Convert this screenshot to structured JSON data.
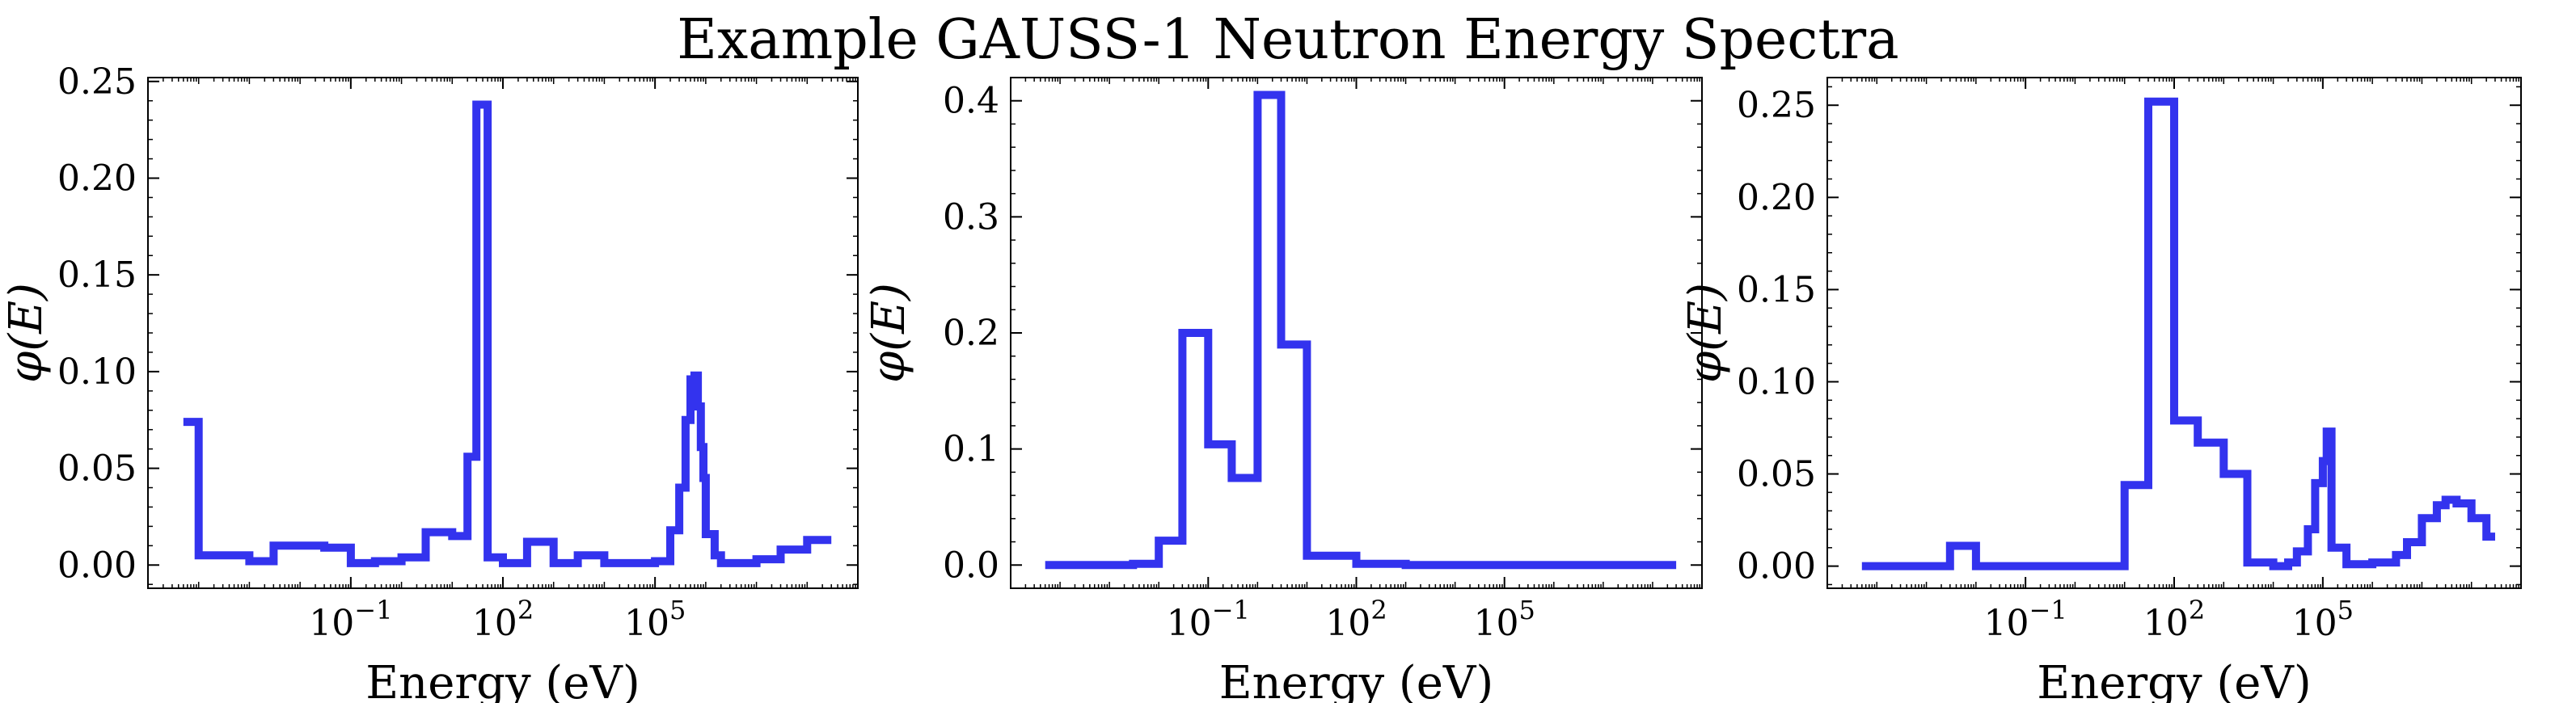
{
  "title": "Example GAUSS-1 Neutron Energy Spectra",
  "series_color": "#3333ee",
  "chart_data": [
    {
      "type": "line",
      "step": "post",
      "xscale": "log",
      "xlabel": "Energy (eV)",
      "ylabel": "φ(E)",
      "xlim": [
        1e-05,
        1000000000.0
      ],
      "ylim": [
        -0.012,
        0.252
      ],
      "xticks": [
        {
          "value": 0.1,
          "base": "10",
          "exp": "−1"
        },
        {
          "value": 100,
          "base": "10",
          "exp": "2"
        },
        {
          "value": 100000,
          "base": "10",
          "exp": "5"
        }
      ],
      "yticks": [
        {
          "value": 0,
          "label": "0.00"
        },
        {
          "value": 0.05,
          "label": "0.05"
        },
        {
          "value": 0.1,
          "label": "0.10"
        },
        {
          "value": 0.15,
          "label": "0.15"
        },
        {
          "value": 0.2,
          "label": "0.20"
        },
        {
          "value": 0.25,
          "label": "0.25"
        }
      ],
      "x": [
        5e-05,
        0.0001,
        0.001,
        0.003,
        0.03,
        0.1,
        0.3,
        1,
        3,
        10,
        20,
        30,
        50,
        100,
        300,
        1000,
        3000,
        10000,
        100000,
        200000,
        300000,
        400000,
        500000,
        600000,
        700000,
        800000,
        900000,
        1000000,
        1500000,
        2000000,
        5000000,
        10000000,
        30000000,
        100000000,
        300000000
      ],
      "y": [
        0.074,
        0.005,
        0.002,
        0.01,
        0.009,
        0.001,
        0.002,
        0.004,
        0.017,
        0.015,
        0.056,
        0.238,
        0.004,
        0.001,
        0.012,
        0.001,
        0.005,
        0.001,
        0.002,
        0.018,
        0.04,
        0.075,
        0.096,
        0.098,
        0.082,
        0.061,
        0.045,
        0.016,
        0.005,
        0.001,
        0.001,
        0.003,
        0.008,
        0.013,
        0.013
      ]
    },
    {
      "type": "line",
      "step": "post",
      "xscale": "log",
      "xlabel": "Energy (eV)",
      "ylabel": "φ(E)",
      "xlim": [
        1e-05,
        1000000000.0
      ],
      "ylim": [
        -0.02,
        0.42
      ],
      "xticks": [
        {
          "value": 0.1,
          "base": "10",
          "exp": "−1"
        },
        {
          "value": 100,
          "base": "10",
          "exp": "2"
        },
        {
          "value": 100000,
          "base": "10",
          "exp": "5"
        }
      ],
      "yticks": [
        {
          "value": 0,
          "label": "0.0"
        },
        {
          "value": 0.1,
          "label": "0.1"
        },
        {
          "value": 0.2,
          "label": "0.2"
        },
        {
          "value": 0.3,
          "label": "0.3"
        },
        {
          "value": 0.4,
          "label": "0.4"
        }
      ],
      "x": [
        5e-05,
        0.003,
        0.01,
        0.03,
        0.1,
        0.3,
        1,
        3,
        10,
        100,
        1000,
        1000000,
        300000000
      ],
      "y": [
        0.0,
        0.001,
        0.021,
        0.2,
        0.104,
        0.075,
        0.405,
        0.19,
        0.008,
        0.001,
        0.0,
        0.0,
        0.0
      ]
    },
    {
      "type": "line",
      "step": "post",
      "xscale": "log",
      "xlabel": "Energy (eV)",
      "ylabel": "φ(E)",
      "xlim": [
        1e-05,
        1000000000.0
      ],
      "ylim": [
        -0.012,
        0.265
      ],
      "xticks": [
        {
          "value": 0.1,
          "base": "10",
          "exp": "−1"
        },
        {
          "value": 100,
          "base": "10",
          "exp": "2"
        },
        {
          "value": 100000,
          "base": "10",
          "exp": "5"
        }
      ],
      "yticks": [
        {
          "value": 0,
          "label": "0.00"
        },
        {
          "value": 0.05,
          "label": "0.05"
        },
        {
          "value": 0.1,
          "label": "0.10"
        },
        {
          "value": 0.15,
          "label": "0.15"
        },
        {
          "value": 0.2,
          "label": "0.20"
        },
        {
          "value": 0.25,
          "label": "0.25"
        }
      ],
      "x": [
        5e-05,
        0.001,
        0.003,
        0.01,
        1,
        10,
        30,
        100,
        300,
        1000,
        3000,
        10000,
        20000,
        30000,
        50000,
        70000,
        100000,
        120000,
        150000,
        300000,
        1000000,
        3000000,
        5000000,
        10000000,
        20000000,
        30000000,
        50000000,
        100000000,
        200000000,
        300000000
      ],
      "y": [
        0.0,
        0.0,
        0.011,
        0.0,
        0.0,
        0.044,
        0.252,
        0.079,
        0.067,
        0.05,
        0.002,
        0.0,
        0.002,
        0.008,
        0.02,
        0.045,
        0.057,
        0.073,
        0.01,
        0.001,
        0.002,
        0.006,
        0.013,
        0.026,
        0.033,
        0.036,
        0.034,
        0.026,
        0.016,
        0.016
      ]
    }
  ]
}
